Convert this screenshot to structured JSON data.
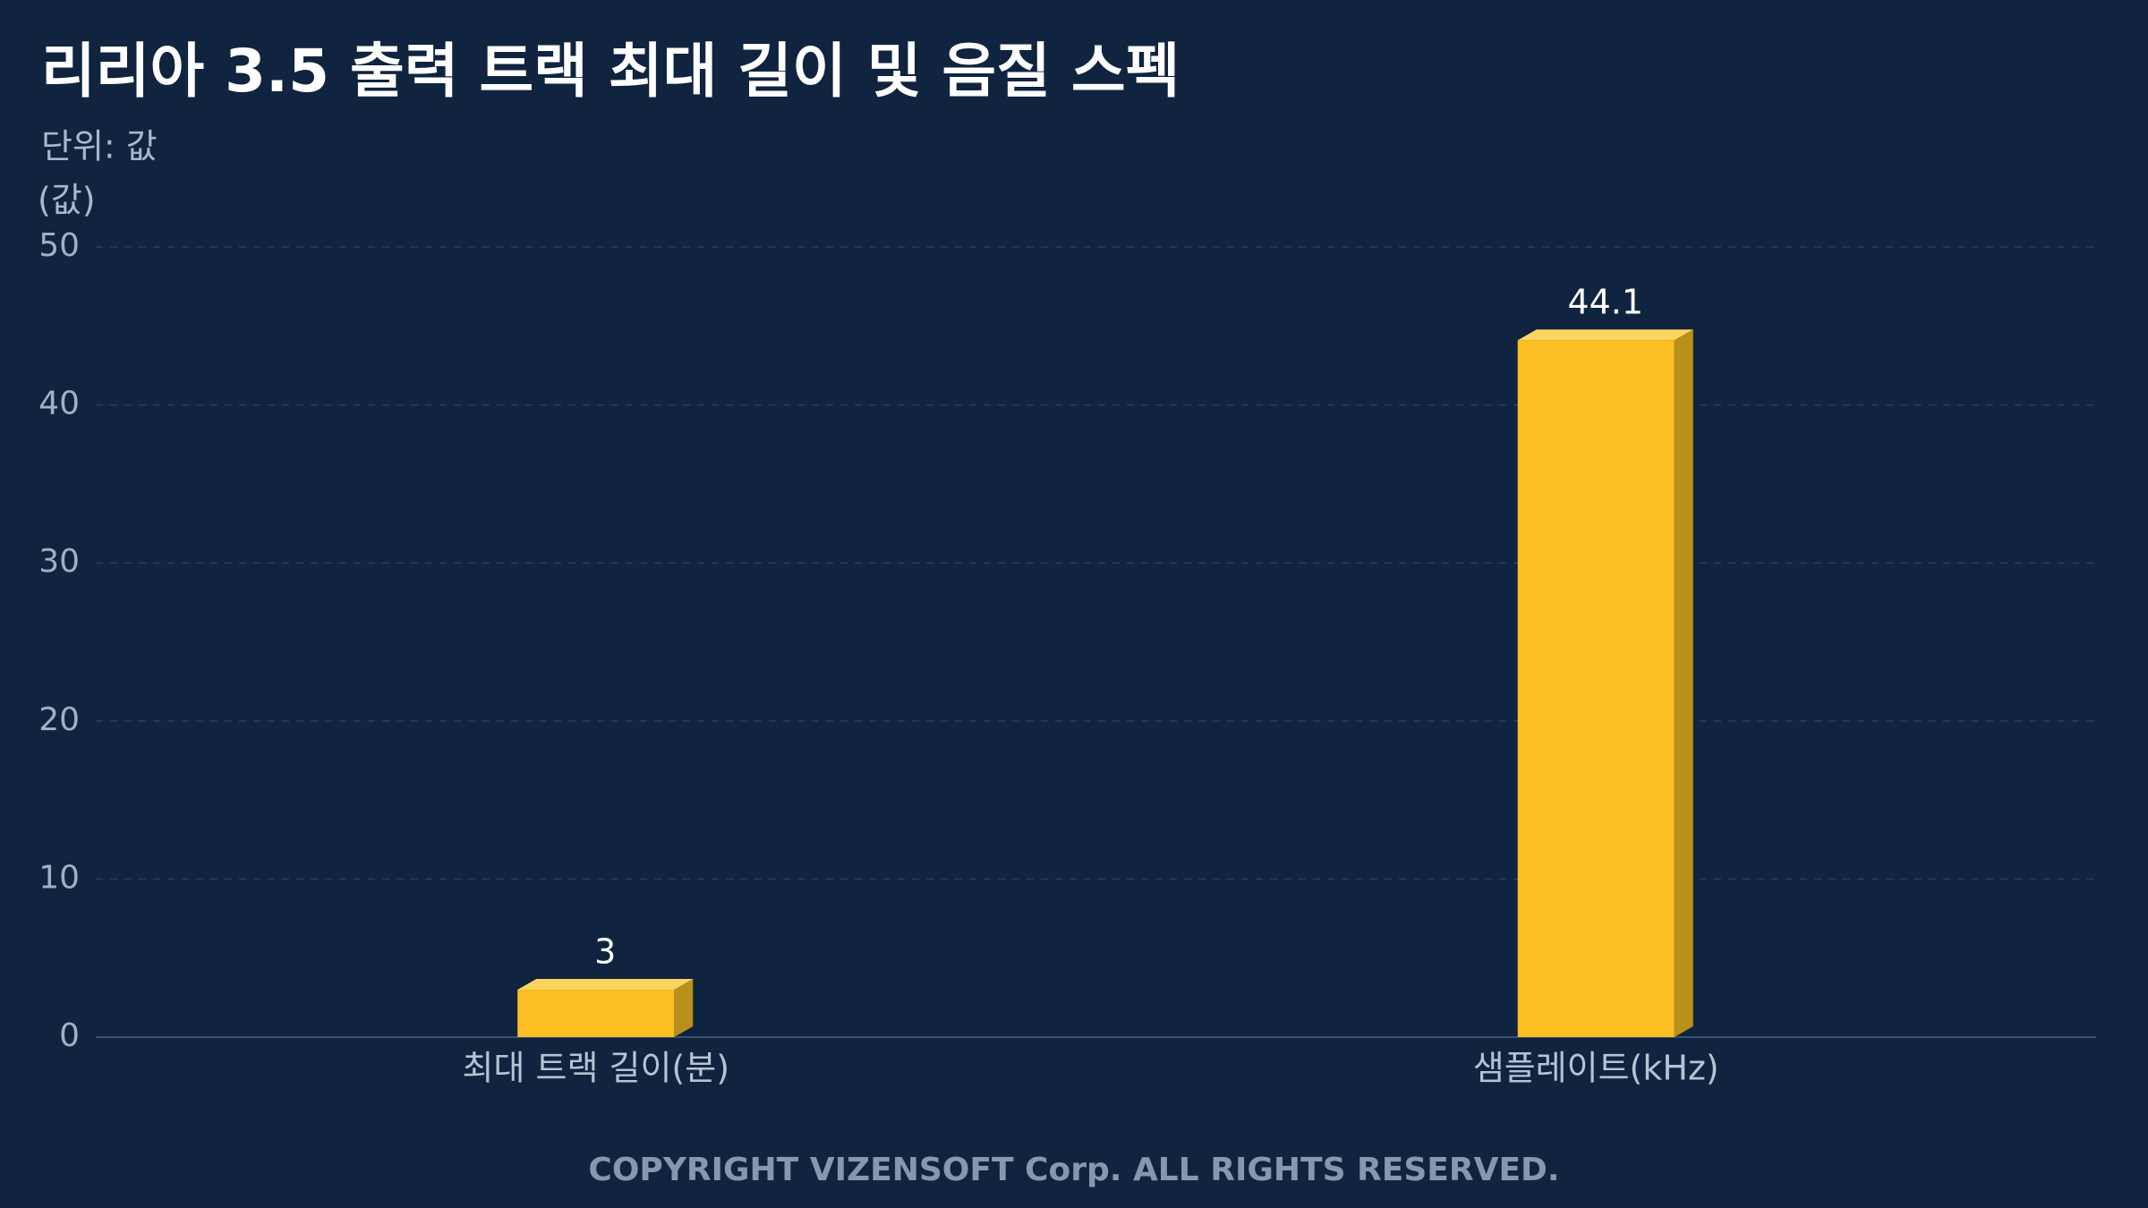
{
  "chart_data": {
    "type": "bar",
    "title": "리리아 3.5 출력 트랙 최대 길이 및 음질 스펙",
    "subtitle": "단위: 값",
    "y_label": "(값)",
    "categories": [
      "최대 트랙 길이(분)",
      "샘플레이트(kHz)"
    ],
    "values": [
      3,
      44.1
    ],
    "color": "#fbbf24",
    "ylim": [
      0,
      50
    ],
    "yticks": [
      0,
      10,
      20,
      30,
      40,
      50
    ],
    "grid": true,
    "footer": "COPYRIGHT VIZENSOFT Corp. ALL RIGHTS RESERVED."
  }
}
